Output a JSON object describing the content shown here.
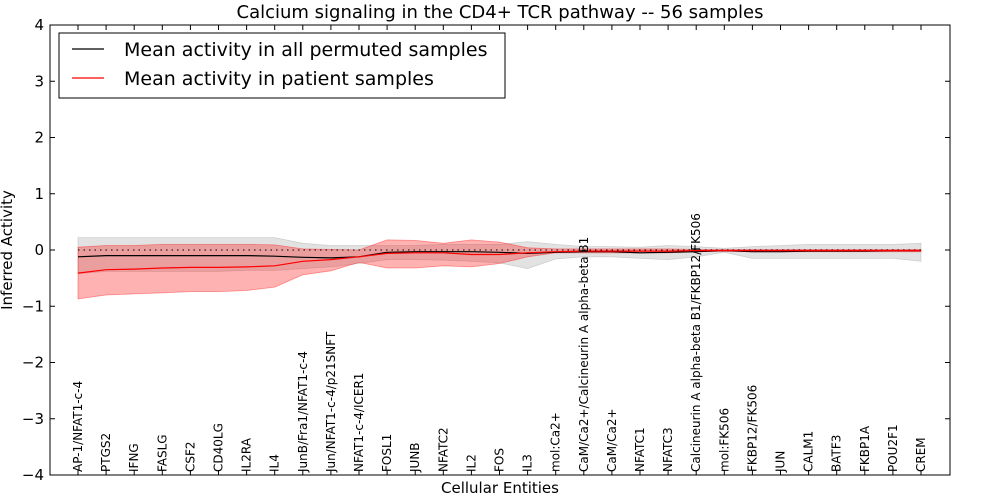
{
  "chart_data": {
    "type": "line",
    "title": "Calcium signaling in the CD4+ TCR pathway -- 56 samples",
    "xlabel": "Cellular Entities",
    "ylabel": "Inferred Activity",
    "ylim": [
      -4,
      4
    ],
    "yticks": [
      -4,
      -3,
      -2,
      -1,
      0,
      1,
      2,
      3,
      4
    ],
    "legend_position": "top-left",
    "categories": [
      "AP-1/NFAT1-c-4",
      "PTGS2",
      "IFNG",
      "FASLG",
      "CSF2",
      "CD40LG",
      "IL2RA",
      "IL4",
      "JunB/Fra1/NFAT1-c-4",
      "Jun/NFAT1-c-4/p21SNFT",
      "NFAT1-c-4/ICER1",
      "FOSL1",
      "JUNB",
      "NFATC2",
      "IL2",
      "FOS",
      "IL3",
      "mol:Ca2+",
      "CaM/Ca2+/Calcineurin A alpha-beta B1",
      "CaM/Ca2+",
      "NFATC1",
      "NFATC3",
      "Calcineurin A alpha-beta B1/FKBP12/FK506",
      "mol:FK506",
      "FKBP12/FK506",
      "JUN",
      "CALM1",
      "BATF3",
      "FKBP1A",
      "POU2F1",
      "CREM"
    ],
    "series": [
      {
        "name": "Mean activity in all permuted samples",
        "color": "#000000",
        "values": [
          -0.12,
          -0.1,
          -0.1,
          -0.1,
          -0.1,
          -0.1,
          -0.1,
          -0.11,
          -0.13,
          -0.14,
          -0.12,
          -0.04,
          -0.03,
          -0.03,
          -0.03,
          -0.04,
          -0.06,
          -0.04,
          -0.03,
          -0.03,
          -0.05,
          -0.04,
          -0.03,
          -0.01,
          -0.03,
          -0.03,
          -0.02,
          -0.02,
          -0.02,
          -0.01,
          -0.01
        ],
        "band_lower": [
          -0.42,
          -0.38,
          -0.38,
          -0.38,
          -0.38,
          -0.38,
          -0.36,
          -0.36,
          -0.33,
          -0.3,
          -0.24,
          -0.17,
          -0.17,
          -0.18,
          -0.2,
          -0.23,
          -0.33,
          -0.16,
          -0.12,
          -0.12,
          -0.15,
          -0.17,
          -0.12,
          -0.04,
          -0.15,
          -0.15,
          -0.15,
          -0.15,
          -0.15,
          -0.15,
          -0.2
        ],
        "band_upper": [
          0.22,
          0.22,
          0.22,
          0.22,
          0.22,
          0.22,
          0.22,
          0.22,
          0.12,
          0.08,
          0.08,
          0.08,
          0.08,
          0.1,
          0.1,
          0.1,
          0.15,
          0.1,
          0.06,
          0.06,
          0.05,
          0.08,
          0.06,
          0.03,
          0.06,
          0.08,
          0.1,
          0.1,
          0.1,
          0.1,
          0.12
        ]
      },
      {
        "name": "Mean activity in patient samples",
        "color": "#ff0000",
        "values": [
          -0.41,
          -0.35,
          -0.34,
          -0.32,
          -0.31,
          -0.31,
          -0.3,
          -0.28,
          -0.2,
          -0.17,
          -0.12,
          -0.06,
          -0.05,
          -0.05,
          -0.08,
          -0.08,
          -0.05,
          -0.03,
          -0.02,
          -0.02,
          -0.02,
          -0.02,
          -0.01,
          -0.01,
          -0.01,
          -0.01,
          -0.01,
          -0.01,
          -0.01,
          -0.01,
          -0.01
        ],
        "band_lower": [
          -0.87,
          -0.8,
          -0.78,
          -0.76,
          -0.74,
          -0.74,
          -0.72,
          -0.66,
          -0.44,
          -0.37,
          -0.22,
          -0.32,
          -0.32,
          -0.28,
          -0.3,
          -0.24,
          -0.12,
          -0.05,
          -0.05,
          -0.05,
          -0.05,
          -0.05,
          -0.03,
          -0.02,
          -0.03,
          -0.03,
          -0.03,
          -0.03,
          -0.03,
          -0.03,
          -0.03
        ],
        "band_upper": [
          0.05,
          0.08,
          0.08,
          0.1,
          0.1,
          0.1,
          0.1,
          0.09,
          0.02,
          0.01,
          0.0,
          0.18,
          0.17,
          0.12,
          0.18,
          0.14,
          0.04,
          0.02,
          0.02,
          0.02,
          0.02,
          0.02,
          0.01,
          0.01,
          0.01,
          0.01,
          0.01,
          0.01,
          0.01,
          0.01,
          0.01
        ]
      }
    ],
    "reference_line": {
      "y": 0,
      "style": "dotted"
    }
  }
}
